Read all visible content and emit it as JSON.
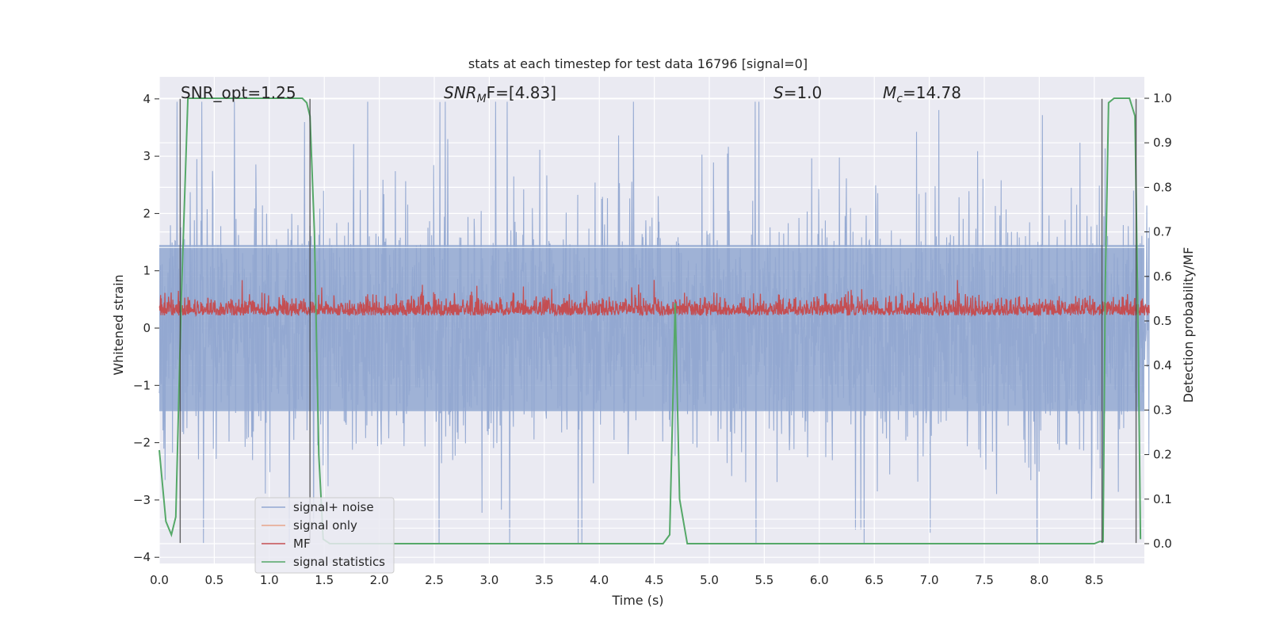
{
  "chart_data": {
    "type": "line",
    "title": "stats at each timestep for test data 16796 [signal=0]",
    "xlabel": "Time (s)",
    "ylabel": "Whitened strain",
    "y2label": "Detection probability/MF",
    "xlim": [
      0,
      9
    ],
    "ylim": [
      -4.25,
      4.4
    ],
    "y2lim": [
      -0.045,
      1.045
    ],
    "xticks": [
      "0.0",
      "0.5",
      "1.0",
      "1.5",
      "2.0",
      "2.5",
      "3.0",
      "3.5",
      "4.0",
      "4.5",
      "5.0",
      "5.5",
      "6.0",
      "6.5",
      "7.0",
      "7.5",
      "8.0",
      "8.5"
    ],
    "yticks": [
      "4",
      "3",
      "2",
      "1",
      "0",
      "−1",
      "−2",
      "−3",
      "−4"
    ],
    "y2ticks": [
      "1.0",
      "0.9",
      "0.8",
      "0.7",
      "0.6",
      "0.5",
      "0.4",
      "0.3",
      "0.2",
      "0.1",
      "0.0"
    ],
    "grid": true,
    "legend_position": "lower-left",
    "annotations": {
      "snr_opt": "SNR_opt=1.25",
      "snr_mf_base": "SNR",
      "snr_mf_sub": "M",
      "snr_mf_rest": "F=[4.83]",
      "s_var": "S",
      "s_value": "=1.0",
      "mc_var": "M",
      "mc_sub": "c",
      "mc_value": "=14.78"
    },
    "series": [
      {
        "name": "signal+ noise",
        "color": "#92a8d1",
        "description_kind": "noise"
      },
      {
        "name": "signal only",
        "color": "#e8a58a",
        "description_kind": "empty"
      },
      {
        "name": "MF",
        "color": "#c44e52",
        "description_kind": "noise"
      },
      {
        "name": "signal statistics",
        "color": "#55a868",
        "x": [
          0.0,
          0.06,
          0.11,
          0.15,
          0.2,
          0.26,
          0.3,
          0.5,
          1.0,
          1.3,
          1.34,
          1.37,
          1.41,
          1.45,
          1.49,
          1.55,
          2.0,
          3.0,
          4.0,
          4.5,
          4.58,
          4.64,
          4.67,
          4.69,
          4.73,
          4.8,
          5.0,
          6.0,
          7.0,
          8.0,
          8.5,
          8.55,
          8.58,
          8.6,
          8.63,
          8.68,
          8.75,
          8.82,
          8.87,
          8.9,
          8.92
        ],
        "values": [
          0.21,
          0.05,
          0.02,
          0.06,
          0.55,
          1.0,
          1.0,
          1.0,
          1.0,
          1.0,
          0.99,
          0.96,
          0.7,
          0.2,
          0.01,
          0.0,
          0.0,
          0.0,
          0.0,
          0.0,
          0.0,
          0.02,
          0.33,
          0.54,
          0.1,
          0.0,
          0.0,
          0.0,
          0.0,
          0.0,
          0.0,
          0.005,
          0.005,
          0.58,
          0.99,
          1.0,
          1.0,
          1.0,
          0.96,
          0.45,
          0.01
        ]
      }
    ],
    "vlines": [
      {
        "x": 0.19,
        "ymin": -3.75,
        "ymax": 4.0
      },
      {
        "x": 1.37,
        "ymin": -3.75,
        "ymax": 4.0
      },
      {
        "x": 8.57,
        "ymin": -3.75,
        "ymax": 4.0
      },
      {
        "x": 8.88,
        "ymin": -3.75,
        "ymax": 4.0
      }
    ],
    "hlines_y2": [
      0.035,
      0.055,
      0.665
    ]
  }
}
